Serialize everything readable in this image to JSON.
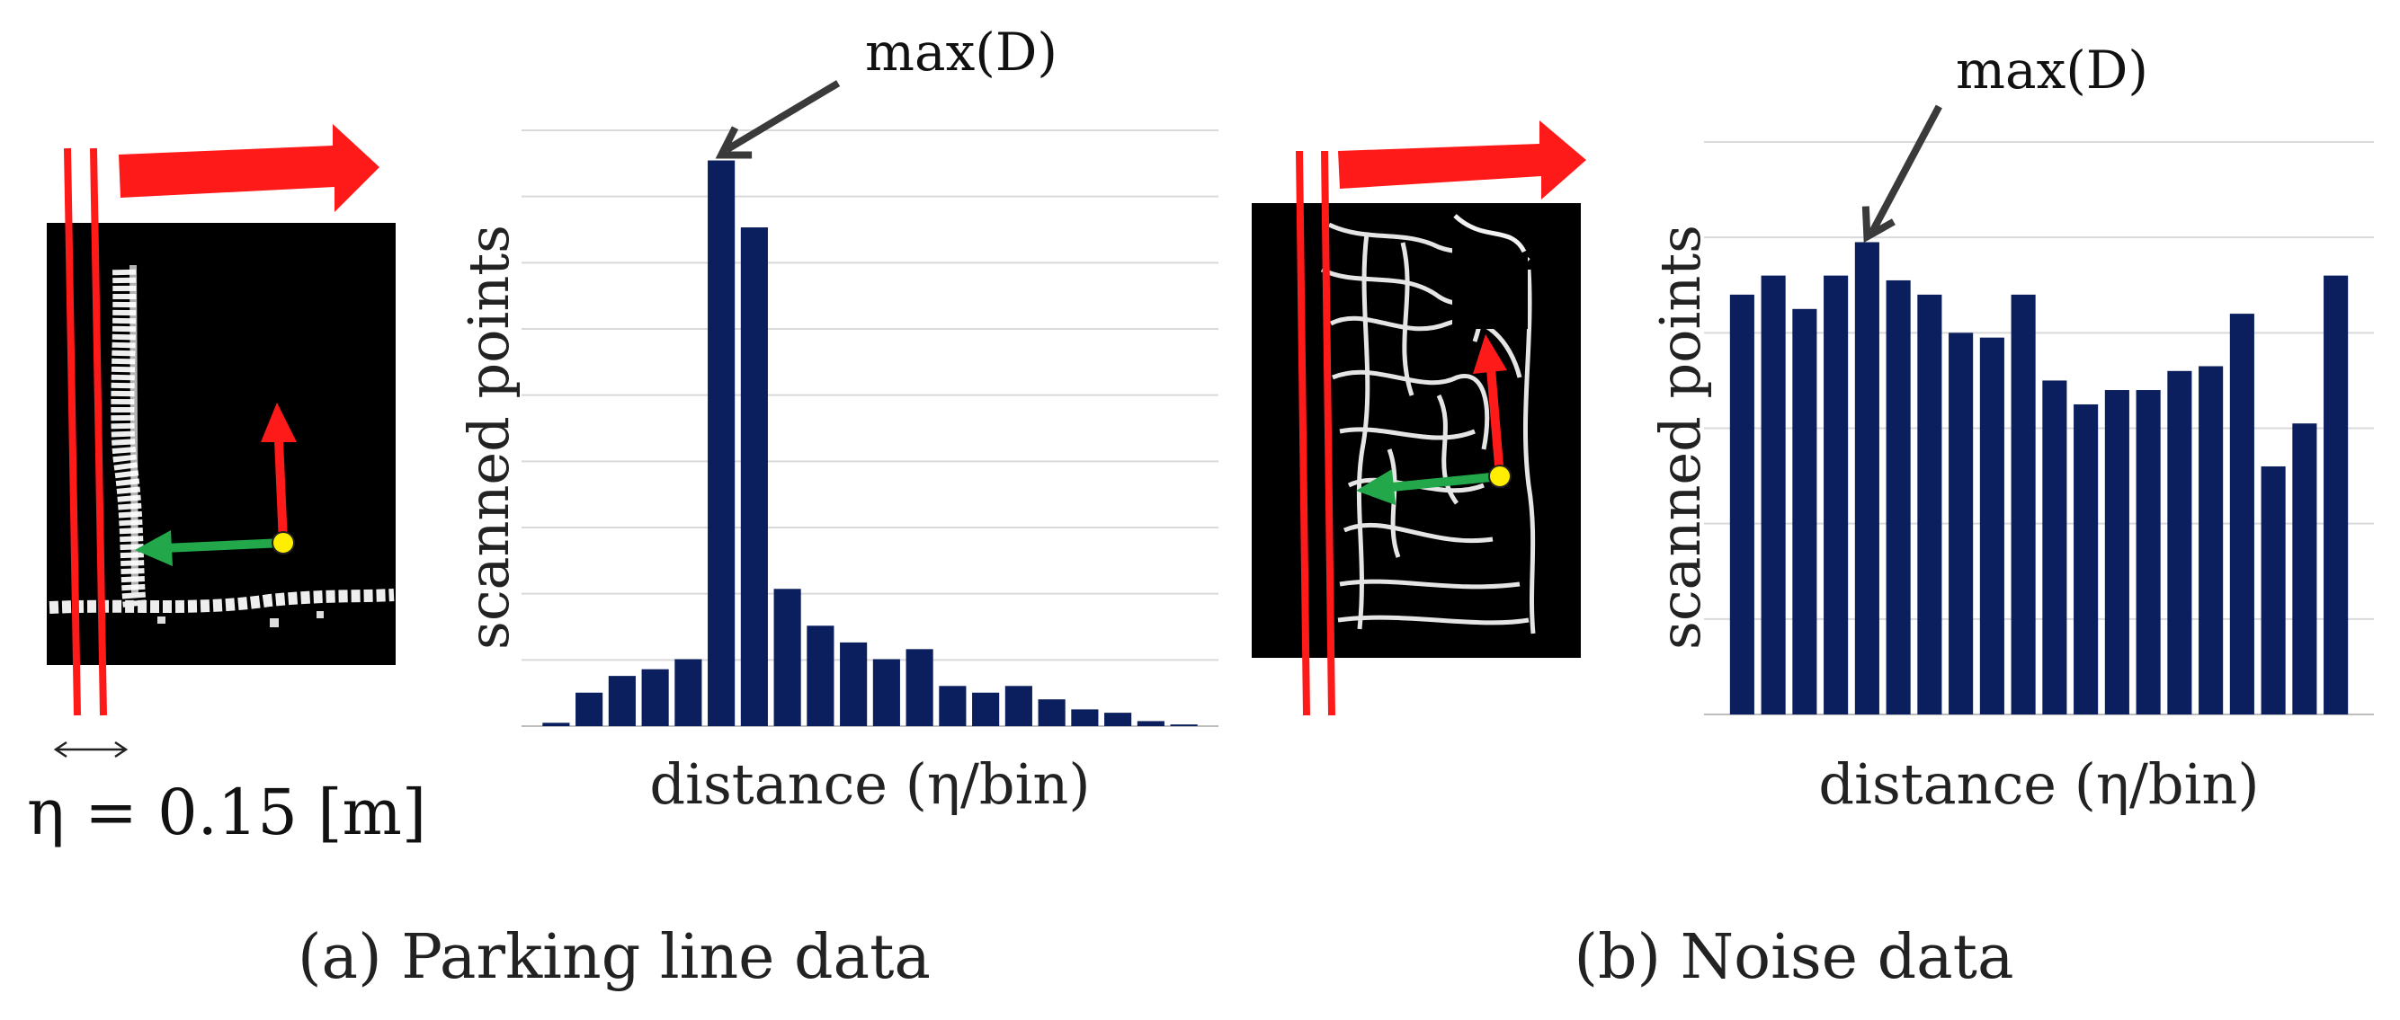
{
  "chart_data": [
    {
      "type": "bar",
      "panel": "a",
      "caption": "(a) Parking line data",
      "title": "",
      "xlabel": "distance (η/bin)",
      "ylabel": "scanned points",
      "annotation": "max(D)",
      "scale_label": "η = 0.15 [m]",
      "values": [
        1,
        10,
        15,
        17,
        20,
        169,
        149,
        41,
        30,
        25,
        20,
        23,
        12,
        10,
        12,
        8,
        5,
        4,
        1.5,
        0.5
      ],
      "ylim": [
        0,
        178
      ],
      "grid": true,
      "bar_color": "#0b1f5e"
    },
    {
      "type": "bar",
      "panel": "b",
      "caption": "(b) Noise data",
      "title": "",
      "xlabel": "distance (η/bin)",
      "ylabel": "scanned points",
      "annotation": "max(D)",
      "values": [
        88,
        92,
        85,
        92,
        99,
        91,
        88,
        80,
        79,
        88,
        70,
        65,
        68,
        68,
        72,
        73,
        84,
        52,
        61,
        92
      ],
      "ylim": [
        0,
        120
      ],
      "grid": true,
      "bar_color": "#0b1f5e"
    }
  ],
  "legend_colors": {
    "arrow_red": "#ff1a1a",
    "arrow_green": "#22a84a",
    "point_yellow": "#ffee00"
  }
}
